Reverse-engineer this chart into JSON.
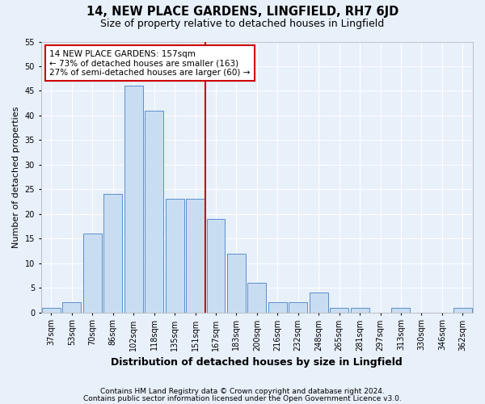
{
  "title1": "14, NEW PLACE GARDENS, LINGFIELD, RH7 6JD",
  "title2": "Size of property relative to detached houses in Lingfield",
  "xlabel": "Distribution of detached houses by size in Lingfield",
  "ylabel": "Number of detached properties",
  "categories": [
    "37sqm",
    "53sqm",
    "70sqm",
    "86sqm",
    "102sqm",
    "118sqm",
    "135sqm",
    "151sqm",
    "167sqm",
    "183sqm",
    "200sqm",
    "216sqm",
    "232sqm",
    "248sqm",
    "265sqm",
    "281sqm",
    "297sqm",
    "313sqm",
    "330sqm",
    "346sqm",
    "362sqm"
  ],
  "values": [
    1,
    2,
    16,
    24,
    46,
    41,
    23,
    23,
    19,
    12,
    6,
    2,
    2,
    4,
    1,
    1,
    0,
    1,
    0,
    0,
    1
  ],
  "bar_color": "#c9ddf2",
  "bar_edge_color": "#5b8fc9",
  "marker_bin_index": 7,
  "vline_color": "#cc0000",
  "annotation_text": "14 NEW PLACE GARDENS: 157sqm\n← 73% of detached houses are smaller (163)\n27% of semi-detached houses are larger (60) →",
  "annotation_box_color": "#cc0000",
  "background_color": "#e8f0fa",
  "grid_color": "#ffffff",
  "ylim": [
    0,
    55
  ],
  "yticks": [
    0,
    5,
    10,
    15,
    20,
    25,
    30,
    35,
    40,
    45,
    50,
    55
  ],
  "footer1": "Contains HM Land Registry data © Crown copyright and database right 2024.",
  "footer2": "Contains public sector information licensed under the Open Government Licence v3.0.",
  "title1_fontsize": 10.5,
  "title2_fontsize": 9,
  "xlabel_fontsize": 9,
  "ylabel_fontsize": 8,
  "tick_fontsize": 7,
  "annotation_fontsize": 7.5,
  "footer_fontsize": 6.5
}
